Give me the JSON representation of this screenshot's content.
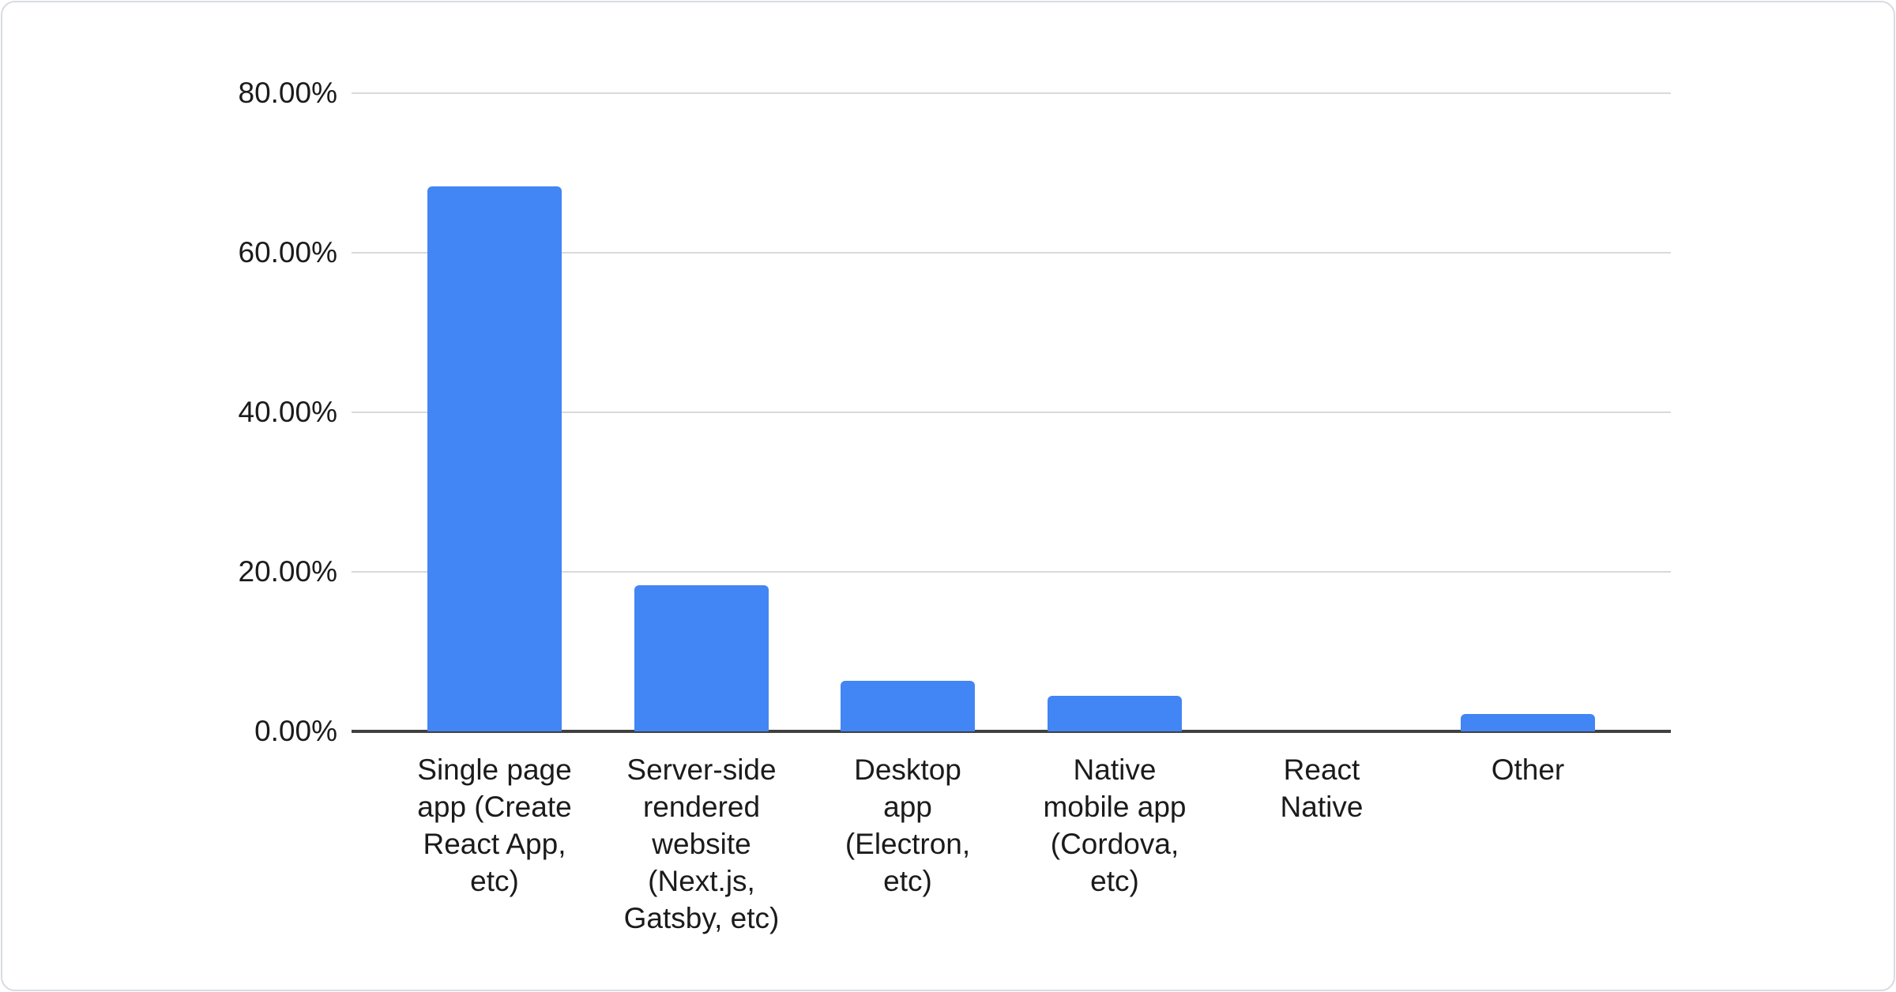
{
  "chart_data": {
    "type": "bar",
    "title": "",
    "xlabel": "",
    "ylabel": "",
    "categories": [
      "Single page app (Create React App, etc)",
      "Server-side rendered website (Next.js, Gatsby, etc)",
      "Desktop app (Electron, etc)",
      "Native mobile app (Cordova, etc)",
      "React Native",
      "Other"
    ],
    "category_lines": [
      [
        "Single page",
        "app (Create",
        "React App,",
        "etc)"
      ],
      [
        "Server-side",
        "rendered",
        "website",
        "(Next.js,",
        "Gatsby, etc)"
      ],
      [
        "Desktop",
        "app",
        "(Electron,",
        "etc)"
      ],
      [
        "Native",
        "mobile app",
        "(Cordova,",
        "etc)"
      ],
      [
        "React",
        "Native"
      ],
      [
        "Other"
      ]
    ],
    "values": [
      68.3,
      18.3,
      6.3,
      4.5,
      0,
      2.2
    ],
    "value_unit": "%",
    "ylim": [
      0,
      80
    ],
    "yticks": [
      {
        "value": 80,
        "label": "80.00%"
      },
      {
        "value": 60,
        "label": "60.00%"
      },
      {
        "value": 40,
        "label": "40.00%"
      },
      {
        "value": 20,
        "label": "20.00%"
      },
      {
        "value": 0,
        "label": "0.00%"
      }
    ],
    "grid": true,
    "legend_position": "none",
    "bar_color": "#4285f4",
    "axis_line_color": "#404040",
    "gridline_color": "#d9d9d9",
    "label_color": "#1b1b1b"
  }
}
